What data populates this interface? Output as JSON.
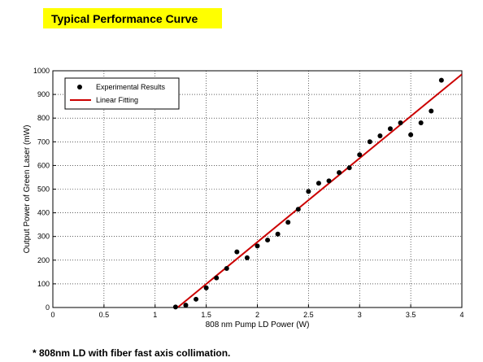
{
  "header": {
    "title": "Typical Performance Curve"
  },
  "footnote": "* 808nm LD with fiber fast axis collimation.",
  "colors": {
    "title_bg": "#ffff00",
    "fit_line": "#cc0000",
    "points": "#000000",
    "grid": "#000000"
  },
  "chart_data": {
    "type": "scatter",
    "xlabel": "808 nm Pump LD Power (W)",
    "ylabel": "Output Power of Green Laser (mW)",
    "xlim": [
      0,
      4
    ],
    "ylim": [
      0,
      1000
    ],
    "xticks": [
      "0",
      "0.5",
      "1",
      "1.5",
      "2",
      "2.5",
      "3",
      "3.5",
      "4"
    ],
    "yticks": [
      "0",
      "100",
      "200",
      "300",
      "400",
      "500",
      "600",
      "700",
      "800",
      "900",
      "1000"
    ],
    "grid": "dotted",
    "legend_position": "top-left",
    "series": [
      {
        "name": "Experimental Results",
        "kind": "points",
        "x": [
          1.2,
          1.3,
          1.4,
          1.5,
          1.6,
          1.7,
          1.8,
          1.9,
          2.0,
          2.1,
          2.2,
          2.3,
          2.4,
          2.5,
          2.6,
          2.7,
          2.8,
          2.9,
          3.0,
          3.1,
          3.2,
          3.3,
          3.4,
          3.5,
          3.6,
          3.7,
          3.8
        ],
        "y": [
          2,
          10,
          35,
          83,
          125,
          165,
          235,
          210,
          260,
          285,
          310,
          360,
          415,
          490,
          525,
          535,
          570,
          590,
          645,
          700,
          725,
          755,
          780,
          730,
          780,
          830,
          960
        ]
      },
      {
        "name": "Linear Fitting",
        "kind": "line",
        "x": [
          1.22,
          4.0
        ],
        "y": [
          0,
          985
        ]
      }
    ]
  }
}
